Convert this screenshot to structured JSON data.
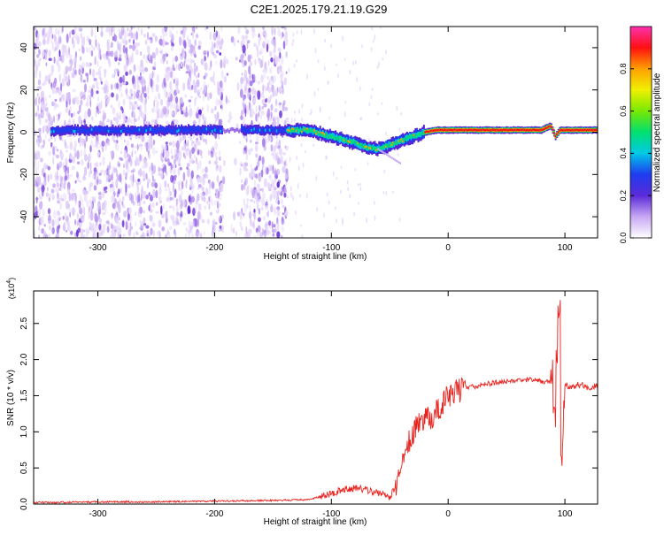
{
  "title": "C2E1.2025.179.21.19.G29",
  "chart_data": [
    {
      "type": "heatmap",
      "xlabel": "Height of straight line (km)",
      "ylabel": "Frequency (Hz)",
      "xlim": [
        -355,
        128
      ],
      "ylim": [
        -50,
        50
      ],
      "xticks": [
        -300,
        -200,
        -100,
        0,
        100
      ],
      "yticks": [
        -40,
        -20,
        0,
        20,
        40
      ],
      "colorbar": {
        "label": "Normalized spectral amplitude",
        "ticks": [
          "0.0",
          "0.2",
          "0.4",
          "0.6",
          "0.8"
        ],
        "range": [
          0,
          1
        ]
      },
      "ridge": {
        "x": [
          -350,
          -330,
          -300,
          -250,
          -200,
          -170,
          -140,
          -120,
          -100,
          -80,
          -70,
          -60,
          -50,
          -40,
          -30,
          -20,
          -10,
          0,
          20,
          50,
          80,
          88,
          92,
          96,
          100,
          128
        ],
        "y": [
          0,
          1,
          1,
          1,
          1,
          1,
          1,
          1,
          -2,
          -5,
          -7,
          -8,
          -6,
          -4,
          -2,
          0,
          1,
          1,
          1,
          1,
          1,
          3,
          -2,
          1,
          1,
          1
        ]
      },
      "noise_region_end": -138
    },
    {
      "type": "line",
      "xlabel": "Height of straight line (km)",
      "ylabel": "SNR (10 * v/v)",
      "y_multiplier": "(x10",
      "y_multiplier_exp": "4",
      "y_multiplier_close": ")",
      "xlim": [
        -355,
        128
      ],
      "ylim": [
        0,
        2.95
      ],
      "xticks": [
        -300,
        -200,
        -100,
        0,
        100
      ],
      "yticks": [
        "0.0",
        "0.5",
        "1.0",
        "1.5",
        "2.0",
        "2.5"
      ],
      "series_color": "#e8231e",
      "series": [
        {
          "x": [
            -355,
            -300,
            -250,
            -200,
            -150,
            -120,
            -110,
            -100,
            -90,
            -80,
            -70,
            -60,
            -50,
            -45,
            -40,
            -35,
            -30,
            -25,
            -20,
            -15,
            -10,
            -5,
            0,
            10,
            20,
            30,
            40,
            50,
            60,
            70,
            80,
            88,
            92,
            95,
            97,
            100,
            105,
            110,
            115,
            120,
            128
          ],
          "y": [
            0.02,
            0.03,
            0.03,
            0.04,
            0.05,
            0.06,
            0.1,
            0.15,
            0.2,
            0.22,
            0.2,
            0.15,
            0.1,
            0.25,
            0.5,
            0.8,
            1.0,
            1.1,
            1.15,
            1.2,
            1.3,
            1.4,
            1.5,
            1.58,
            1.62,
            1.65,
            1.68,
            1.7,
            1.72,
            1.72,
            1.7,
            1.68,
            1.6,
            2.8,
            0.7,
            1.65,
            1.6,
            1.65,
            1.65,
            1.6,
            1.65
          ]
        }
      ]
    }
  ]
}
